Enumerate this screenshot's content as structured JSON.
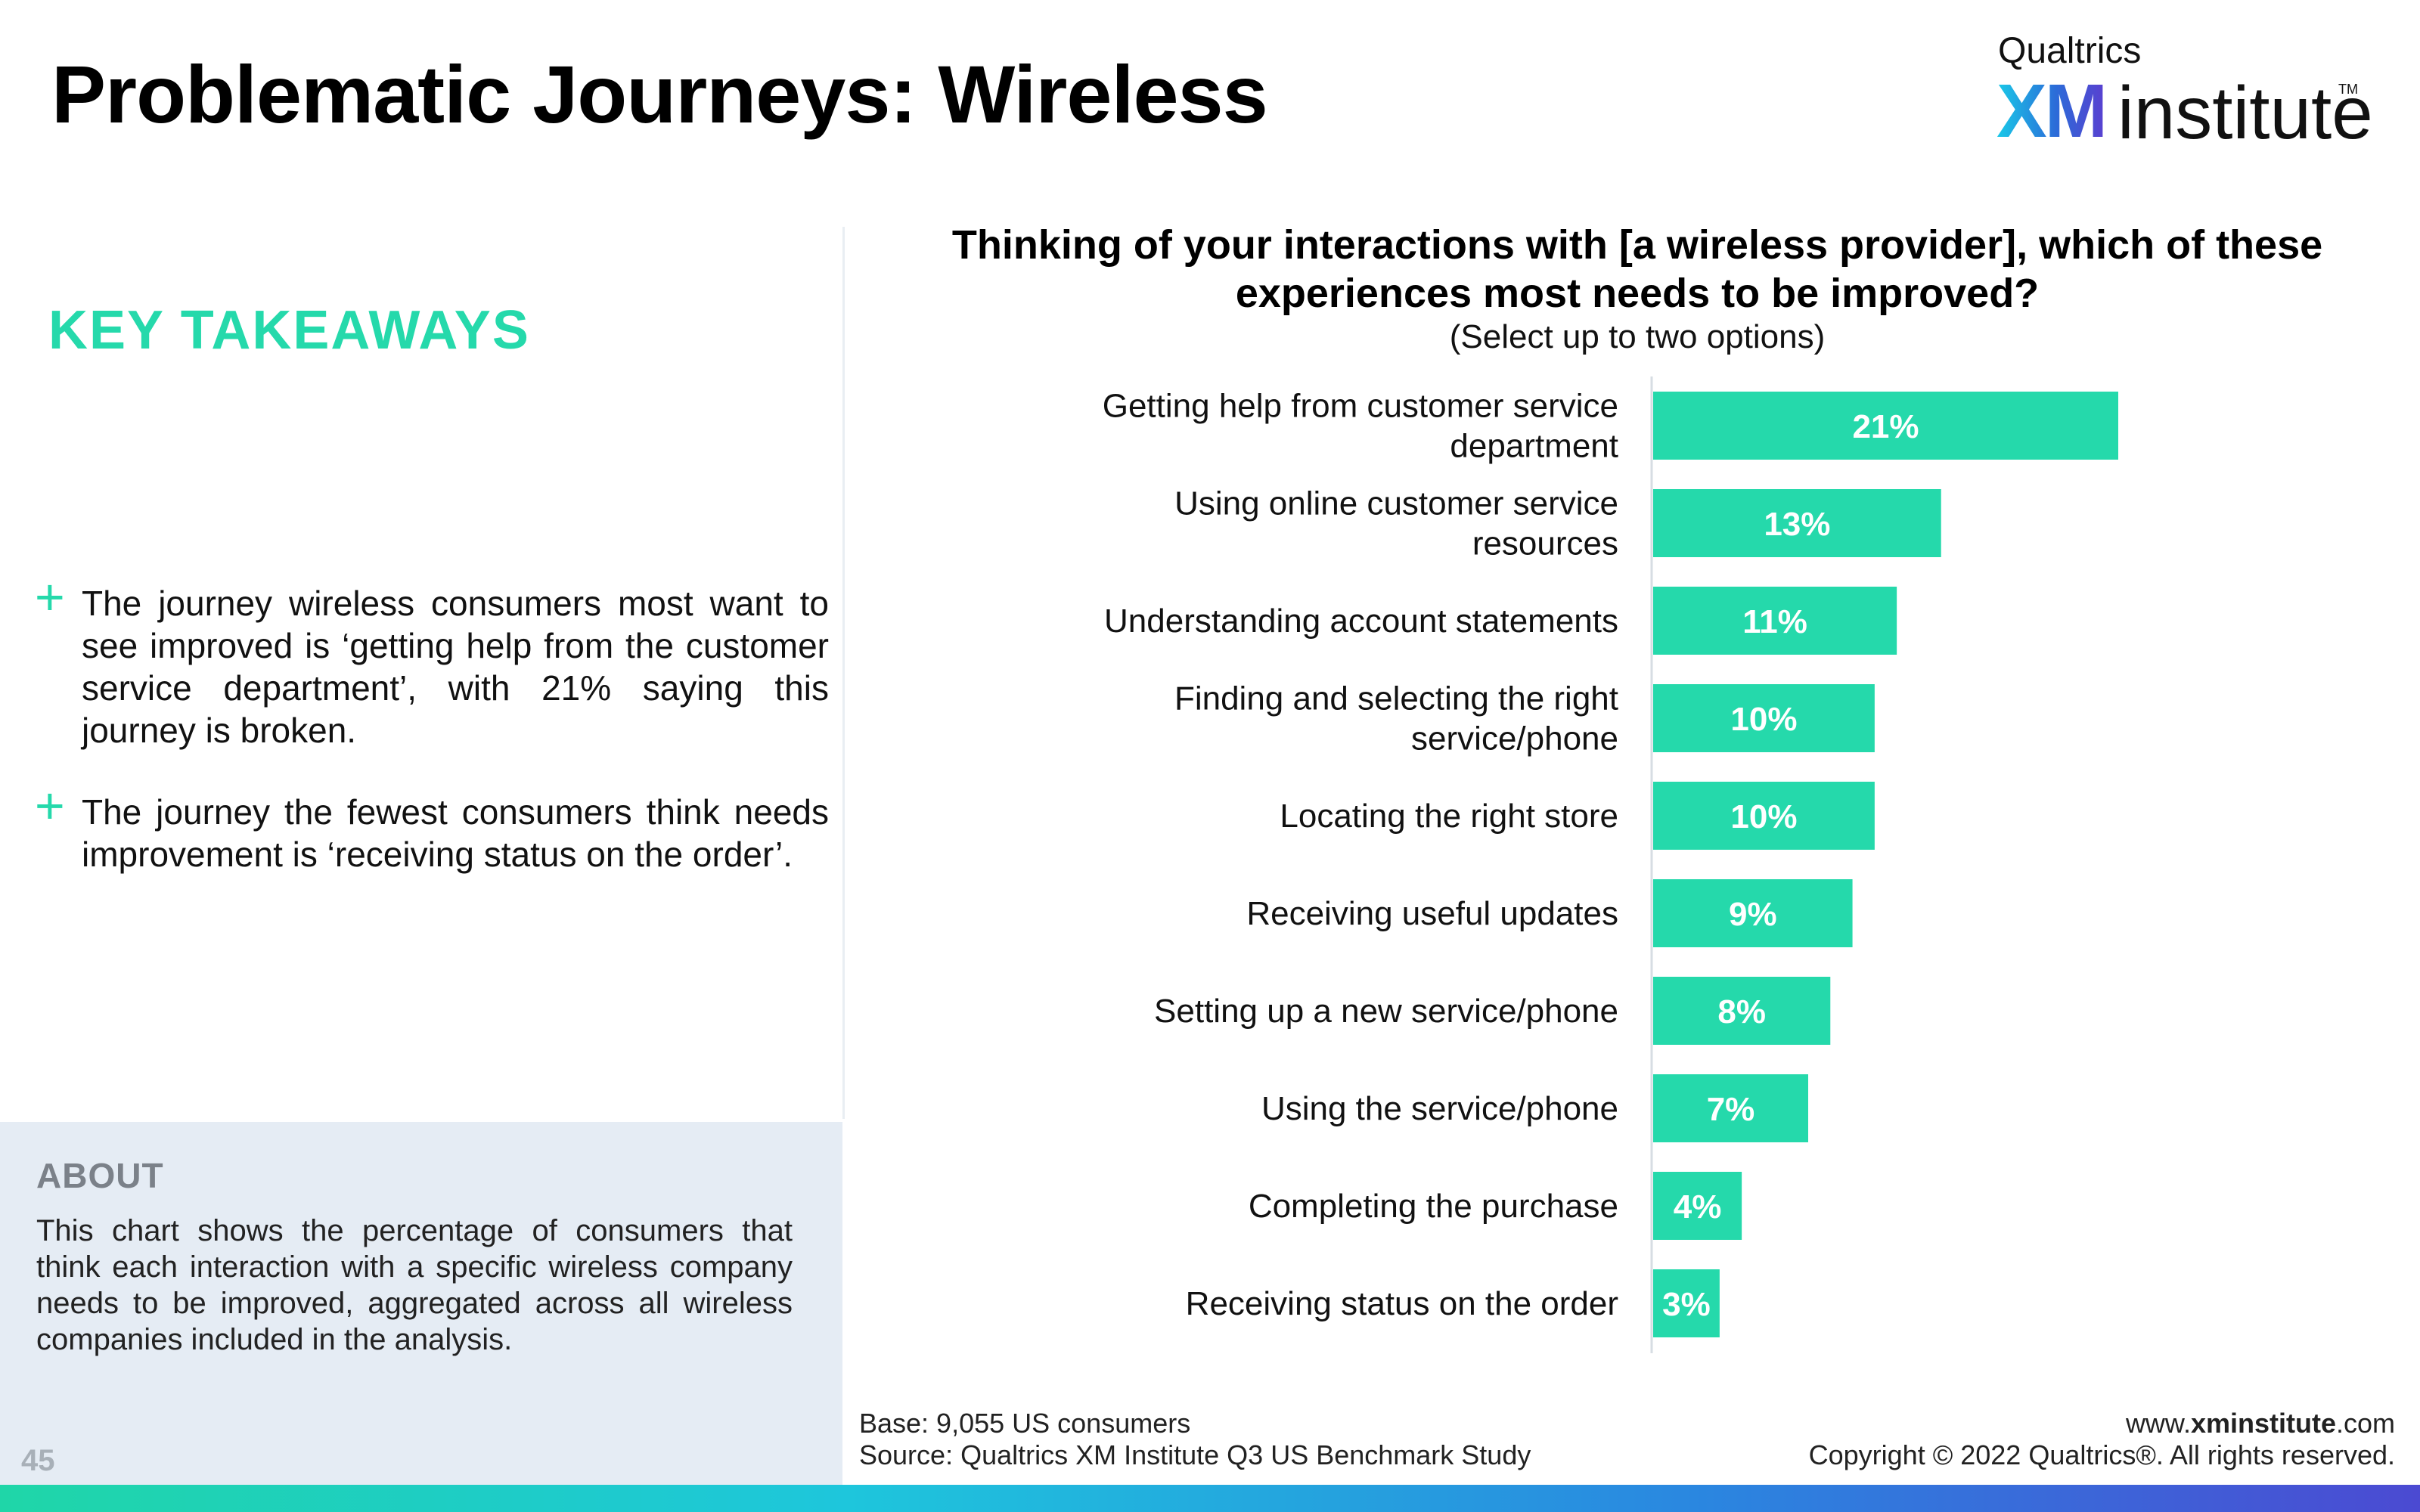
{
  "header": {
    "title": "Problematic Journeys: Wireless",
    "logo": {
      "top": "Qualtrics",
      "xm": "XM",
      "institute": "institute",
      "tm": "TM"
    }
  },
  "takeaways": {
    "heading": "KEY TAKEAWAYS",
    "bullet_symbol": "+",
    "bullets": [
      "The journey wireless consumers most want to see improved is ‘getting help from the customer service department’, with 21% saying this journey is broken.",
      "The journey the fewest consumers think needs improvement is ‘receiving status on the order’."
    ]
  },
  "about": {
    "title": "ABOUT",
    "text": "This chart shows the percentage of consumers that think each interaction with a specific wireless company needs to be improved, aggregated across all wireless companies included in the analysis."
  },
  "page_number": "45",
  "footer": {
    "base": "Base: 9,055 US consumers",
    "source": "Source: Qualtrics XM Institute Q3 US Benchmark Study",
    "website_prefix": "www.",
    "website_bold": "xminstitute",
    "website_suffix": ".com",
    "copyright": "Copyright © 2022 Qualtrics®. All rights reserved."
  },
  "colors": {
    "accent": "#25d9ab",
    "bar": "#25d9ab",
    "about_bg": "#e5ecf4"
  },
  "chart_data": {
    "type": "bar",
    "orientation": "horizontal",
    "title": "Thinking of your interactions with [a wireless provider], which of these experiences most needs to be improved?",
    "subtitle": "(Select up to two options)",
    "categories": [
      "Getting help from customer service department",
      "Using online customer service resources",
      "Understanding account statements",
      "Finding and selecting the right service/phone",
      "Locating the right store",
      "Receiving useful updates",
      "Setting up a new service/phone",
      "Using the service/phone",
      "Completing the purchase",
      "Receiving status on the order"
    ],
    "values": [
      21,
      13,
      11,
      10,
      10,
      9,
      8,
      7,
      4,
      3
    ],
    "data_labels": [
      "21%",
      "13%",
      "11%",
      "10%",
      "10%",
      "9%",
      "8%",
      "7%",
      "4%",
      "3%"
    ],
    "unit": "%",
    "xlim": [
      0,
      28
    ],
    "grid": false,
    "legend": "none"
  }
}
